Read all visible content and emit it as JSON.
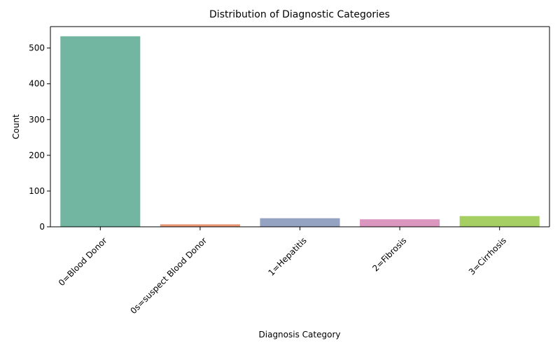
{
  "chart_data": {
    "type": "bar",
    "title": "Distribution of Diagnostic Categories",
    "xlabel": "Diagnosis Category",
    "ylabel": "Count",
    "categories": [
      "0=Blood Donor",
      "0s=suspect Blood Donor",
      "1=Hepatitis",
      "2=Fibrosis",
      "3=Cirrhosis"
    ],
    "values": [
      533,
      7,
      24,
      21,
      30
    ],
    "colors": [
      "#72b6a1",
      "#e99675",
      "#95a3c3",
      "#db96c0",
      "#a5cf63"
    ],
    "ylim": [
      0,
      560
    ],
    "yticks": [
      0,
      100,
      200,
      300,
      400,
      500
    ],
    "grid": false,
    "legend": "none"
  }
}
